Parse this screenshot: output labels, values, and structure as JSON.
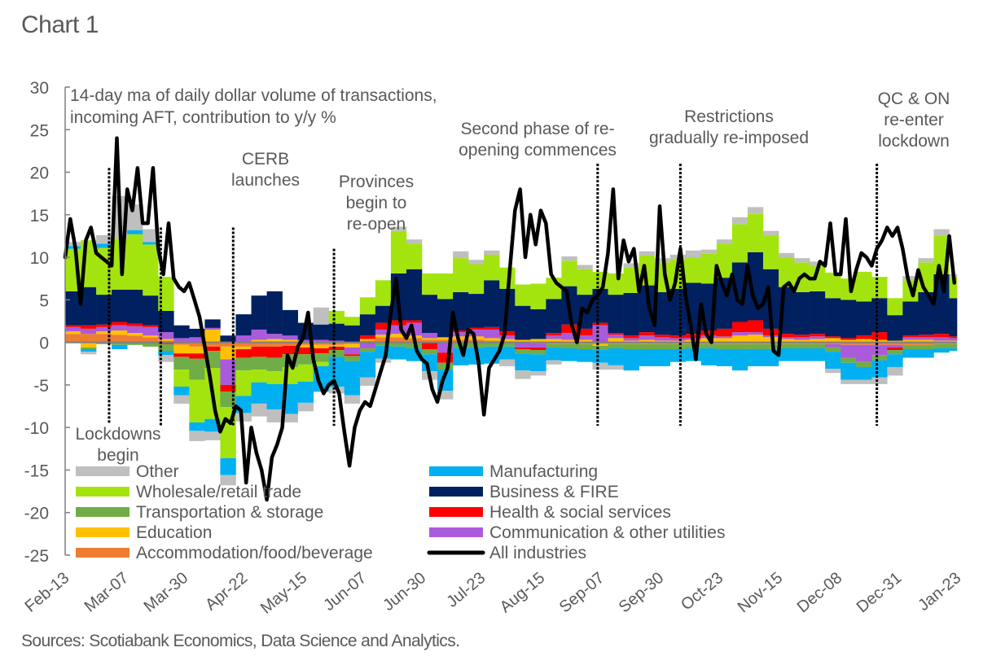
{
  "chart_title": "Chart 1",
  "source": "Sources: Scotiabank Economics, Data Science and Analytics.",
  "chart_data": {
    "type": "bar",
    "subtype": "stacked-bar-with-line",
    "title": "14-day ma of daily dollar volume of transactions, incoming AFT, contribution to y/y %",
    "title_lines": [
      "14-day ma of daily dollar volume of transactions,",
      "incoming AFT, contribution to y/y %"
    ],
    "xlabel": "",
    "ylabel": "",
    "ylim": [
      -25,
      30
    ],
    "yticks": [
      30,
      25,
      20,
      15,
      10,
      5,
      0,
      -5,
      -10,
      -15,
      -20,
      -25
    ],
    "x_tick_labels": [
      "Feb-13",
      "Mar-07",
      "Mar-30",
      "Apr-22",
      "May-15",
      "Jun-07",
      "Jun-30",
      "Jul-23",
      "Aug-15",
      "Sep-07",
      "Sep-30",
      "Oct-23",
      "Nov-15",
      "Dec-08",
      "Dec-31",
      "Jan-23"
    ],
    "x_range_days": [
      0,
      345
    ],
    "x_tick_interval_days": 23,
    "grid": false,
    "legend_position": "bottom-inside",
    "legend": [
      {
        "name": "Other",
        "color": "#bfbfbf",
        "kind": "bar"
      },
      {
        "name": "Wholesale/retail trade",
        "color": "#a3e40f",
        "kind": "bar"
      },
      {
        "name": "Transportation & storage",
        "color": "#70ad47",
        "kind": "bar"
      },
      {
        "name": "Education",
        "color": "#ffc000",
        "kind": "bar"
      },
      {
        "name": "Accommodation/food/beverage",
        "color": "#ed7d31",
        "kind": "bar"
      },
      {
        "name": "Manufacturing",
        "color": "#00b0f0",
        "kind": "bar"
      },
      {
        "name": "Business & FIRE",
        "color": "#002060",
        "kind": "bar"
      },
      {
        "name": "Health & social services",
        "color": "#ff0000",
        "kind": "bar"
      },
      {
        "name": "Communication & other utilities",
        "color": "#a95bdb",
        "kind": "bar"
      },
      {
        "name": "All industries",
        "color": "#000000",
        "kind": "line"
      }
    ],
    "annotations": [
      {
        "text": [
          "Lockdowns",
          "begin"
        ],
        "day": 17,
        "line_top": 20.5,
        "line_bottom": -9.5
      },
      {
        "text": [],
        "day": 37,
        "line_top": 13.5,
        "line_bottom": -9.8
      },
      {
        "text": [
          "CERB",
          "launches"
        ],
        "day": 65,
        "line_top": 13.5,
        "line_bottom": -9.8
      },
      {
        "text": [
          "Provinces",
          "begin to",
          "re-open"
        ],
        "day": 104,
        "line_top": 11.0,
        "line_bottom": -9.8
      },
      {
        "text": [
          "Second phase of re-",
          "opening commences"
        ],
        "day": 206,
        "line_top": 21.0,
        "line_bottom": -9.8
      },
      {
        "text": [
          "Restrictions",
          "gradually re-imposed"
        ],
        "day": 238,
        "line_top": 21.0,
        "line_bottom": -9.8
      },
      {
        "text": [
          "QC & ON",
          "re-enter",
          "lockdown"
        ],
        "day": 314,
        "line_top": 21.0,
        "line_bottom": -9.8
      }
    ],
    "x_days_components": [
      0,
      6,
      12,
      18,
      24,
      30,
      36,
      42,
      48,
      54,
      60,
      66,
      72,
      78,
      84,
      90,
      96,
      102,
      108,
      114,
      120,
      126,
      132,
      138,
      144,
      150,
      156,
      162,
      168,
      174,
      180,
      186,
      192,
      198,
      204,
      210,
      216,
      222,
      228,
      234,
      240,
      246,
      252,
      258,
      264,
      270,
      276,
      282,
      288,
      294,
      300,
      306,
      312,
      318,
      324,
      330,
      336,
      342
    ],
    "series": [
      {
        "name": "Accommodation/food/beverage",
        "values": [
          1.0,
          1.0,
          1.0,
          0.9,
          0.8,
          0.6,
          0.2,
          -0.3,
          -0.5,
          -0.5,
          -0.5,
          -0.5,
          -0.5,
          -0.5,
          -0.4,
          -0.3,
          -0.3,
          -0.3,
          -0.2,
          0.2,
          0.6,
          0.6,
          0.5,
          0.3,
          0.3,
          0.3,
          0.3,
          0.2,
          0.1,
          0.0,
          -0.1,
          -0.2,
          -0.2,
          -0.2,
          -0.2,
          -0.2,
          -0.2,
          -0.2,
          -0.2,
          -0.2,
          -0.2,
          -0.2,
          -0.2,
          -0.2,
          -0.2,
          -0.2,
          -0.2,
          -0.2,
          -0.2,
          -0.2,
          -0.3,
          -0.3,
          -0.3,
          -0.3,
          -0.3,
          -0.3,
          -0.2,
          -0.2
        ]
      },
      {
        "name": "Education",
        "values": [
          0.3,
          -0.6,
          0.3,
          0.5,
          0.3,
          0.2,
          0.2,
          -1.0,
          -0.8,
          1.5,
          -1.5,
          -0.3,
          0.3,
          0.4,
          0.3,
          -0.3,
          -0.4,
          -0.2,
          -0.4,
          0.2,
          0.3,
          0.4,
          0.3,
          0.2,
          0.3,
          0.4,
          0.4,
          0.3,
          0.3,
          0.3,
          0.4,
          0.4,
          0.3,
          0.3,
          -0.2,
          0.5,
          0.2,
          0.3,
          0.2,
          0.2,
          0.3,
          0.5,
          0.5,
          0.8,
          0.9,
          0.6,
          0.4,
          0.3,
          0.4,
          0.5,
          0.3,
          0.4,
          0.3,
          0.2,
          0.3,
          0.3,
          0.2,
          0.2
        ]
      },
      {
        "name": "Communication & other utilities",
        "values": [
          0.5,
          0.6,
          0.5,
          0.6,
          0.8,
          1.0,
          0.8,
          0.5,
          0.6,
          0.2,
          -3.0,
          0.8,
          1.2,
          0.6,
          0.5,
          0.3,
          0.3,
          0.2,
          -0.8,
          -0.7,
          0.6,
          1.0,
          1.5,
          0.6,
          -1.2,
          0.5,
          0.8,
          1.0,
          0.4,
          -0.6,
          -0.5,
          0.4,
          0.8,
          0.5,
          2.0,
          0.4,
          0.3,
          0.5,
          0.4,
          0.3,
          0.2,
          0.3,
          0.2,
          0.4,
          0.3,
          0.2,
          0.2,
          0.3,
          0.3,
          -0.4,
          -1.5,
          -2.0,
          -1.2,
          -0.3,
          0.3,
          0.3,
          0.4,
          0.3
        ]
      },
      {
        "name": "Health & social services",
        "values": [
          0.2,
          0.4,
          0.3,
          0.4,
          0.3,
          0.2,
          -0.2,
          -0.4,
          -0.6,
          -0.5,
          -0.8,
          -1.0,
          -1.2,
          -1.3,
          -1.0,
          -0.8,
          -0.6,
          -0.4,
          -0.2,
          0.4,
          0.8,
          0.6,
          0.3,
          -0.8,
          -1.2,
          0.2,
          0.2,
          0.3,
          0.5,
          -0.2,
          -0.3,
          0.3,
          1.0,
          0.8,
          0.3,
          0.2,
          0.3,
          0.4,
          0.3,
          0.3,
          0.5,
          0.6,
          0.9,
          1.2,
          1.4,
          0.8,
          0.4,
          0.3,
          0.3,
          0.2,
          0.2,
          0.4,
          0.9,
          -0.3,
          0.2,
          0.3,
          0.4,
          0.2
        ]
      },
      {
        "name": "Transportation & storage",
        "values": [
          -0.1,
          -0.2,
          -0.2,
          -0.3,
          -0.3,
          -0.5,
          -0.8,
          -1.5,
          -2.5,
          -2.0,
          -1.8,
          -1.5,
          -1.5,
          -1.6,
          -1.5,
          -1.2,
          -1.0,
          -0.8,
          -0.6,
          -0.4,
          -0.4,
          -0.5,
          -0.7,
          -0.6,
          -0.8,
          -0.7,
          -0.6,
          -0.5,
          -0.5,
          -0.5,
          -0.5,
          -0.4,
          -0.5,
          -0.6,
          -0.5,
          -0.5,
          -0.6,
          -0.6,
          -0.6,
          -0.6,
          -0.5,
          -0.5,
          -0.6,
          -0.6,
          -0.6,
          -0.6,
          -0.5,
          -0.5,
          -0.5,
          -0.5,
          -0.6,
          -0.6,
          -0.6,
          -0.5,
          -0.5,
          -0.5,
          -0.5,
          -0.5
        ]
      },
      {
        "name": "Business & FIRE",
        "values": [
          4.0,
          4.5,
          3.5,
          3.8,
          4.0,
          3.5,
          2.5,
          1.5,
          1.0,
          1.0,
          0.8,
          2.5,
          4.0,
          5.0,
          3.0,
          2.0,
          1.8,
          2.0,
          2.0,
          2.5,
          2.0,
          5.5,
          6.0,
          4.5,
          4.5,
          4.5,
          4.0,
          5.5,
          5.0,
          4.0,
          3.5,
          4.0,
          4.5,
          4.0,
          4.0,
          4.5,
          5.0,
          5.5,
          5.0,
          5.5,
          6.0,
          5.5,
          6.0,
          7.0,
          8.0,
          7.0,
          5.5,
          5.0,
          5.0,
          4.5,
          4.5,
          4.0,
          4.0,
          3.0,
          4.0,
          5.0,
          7.0,
          4.5
        ]
      },
      {
        "name": "Wholesale/retail trade",
        "values": [
          5.0,
          5.5,
          5.5,
          6.0,
          6.5,
          6.0,
          4.0,
          -2.0,
          -5.0,
          -6.0,
          -6.0,
          -3.0,
          -1.5,
          -1.5,
          -2.0,
          -2.0,
          -0.5,
          1.5,
          1.0,
          2.0,
          3.0,
          5.0,
          3.0,
          2.5,
          3.0,
          4.0,
          3.5,
          3.0,
          2.5,
          2.5,
          3.0,
          2.5,
          3.0,
          3.0,
          2.0,
          2.5,
          3.0,
          3.5,
          3.5,
          3.5,
          3.0,
          3.5,
          4.0,
          4.5,
          4.5,
          4.0,
          3.5,
          3.5,
          3.0,
          3.0,
          2.5,
          3.5,
          2.5,
          2.0,
          2.5,
          3.5,
          4.5,
          2.5
        ]
      },
      {
        "name": "Manufacturing",
        "values": [
          0.3,
          -0.3,
          0.5,
          -0.5,
          0.5,
          0.3,
          -0.5,
          -1.0,
          -1.0,
          -1.5,
          -2.0,
          -2.0,
          -2.5,
          -3.0,
          -3.5,
          -2.5,
          -3.0,
          -3.5,
          -4.0,
          -3.0,
          -1.5,
          -1.5,
          -1.5,
          -2.0,
          -2.5,
          -2.0,
          -2.0,
          -2.0,
          -1.5,
          -2.0,
          -2.0,
          -1.5,
          -1.5,
          -1.5,
          -1.5,
          -2.0,
          -2.5,
          -2.0,
          -2.0,
          -1.5,
          -1.5,
          -2.0,
          -2.0,
          -2.5,
          -2.0,
          -2.0,
          -1.5,
          -1.5,
          -1.5,
          -2.0,
          -2.0,
          -1.5,
          -2.0,
          -1.5,
          -1.0,
          -1.0,
          -0.5,
          -0.3
        ]
      },
      {
        "name": "Other",
        "values": [
          0.5,
          -0.3,
          1.0,
          5.0,
          3.0,
          1.5,
          -0.8,
          -1.0,
          -1.2,
          -1.0,
          -1.2,
          -1.0,
          -1.5,
          -1.5,
          -1.0,
          -1.0,
          2.0,
          -0.8,
          -1.0,
          -1.0,
          -0.5,
          0.5,
          0.5,
          -1.0,
          -1.0,
          0.8,
          0.5,
          0.5,
          -0.8,
          -1.0,
          -0.5,
          -0.5,
          0.5,
          0.5,
          -0.8,
          -0.5,
          0.5,
          0.5,
          0.5,
          0.5,
          0.8,
          0.5,
          0.5,
          0.8,
          0.8,
          0.5,
          0.5,
          0.5,
          0.5,
          -0.5,
          -0.5,
          -0.5,
          -0.8,
          -1.0,
          0.5,
          0.5,
          0.8,
          0.3
        ]
      }
    ],
    "all_industries": {
      "x_days": [
        0,
        2,
        4,
        6,
        8,
        10,
        12,
        14,
        16,
        18,
        20,
        22,
        24,
        26,
        28,
        30,
        32,
        34,
        36,
        38,
        40,
        42,
        44,
        46,
        48,
        50,
        52,
        54,
        56,
        58,
        60,
        62,
        64,
        66,
        68,
        70,
        72,
        74,
        76,
        78,
        80,
        82,
        84,
        86,
        88,
        90,
        92,
        94,
        96,
        98,
        100,
        102,
        104,
        106,
        108,
        110,
        112,
        114,
        116,
        118,
        120,
        122,
        124,
        126,
        128,
        130,
        132,
        134,
        136,
        138,
        140,
        142,
        144,
        146,
        148,
        150,
        152,
        154,
        156,
        158,
        160,
        162,
        164,
        166,
        168,
        170,
        172,
        174,
        176,
        178,
        180,
        182,
        184,
        186,
        188,
        190,
        192,
        194,
        196,
        198,
        200,
        202,
        204,
        206,
        208,
        210,
        212,
        214,
        216,
        218,
        220,
        222,
        224,
        226,
        228,
        230,
        232,
        234,
        236,
        238,
        240,
        242,
        244,
        246,
        248,
        250,
        252,
        254,
        256,
        258,
        260,
        262,
        264,
        266,
        268,
        270,
        272,
        274,
        276,
        278,
        280,
        282,
        284,
        286,
        288,
        290,
        292,
        294,
        296,
        298,
        300,
        302,
        304,
        306,
        308,
        310,
        312,
        314,
        316,
        318,
        320,
        322,
        324,
        326,
        328,
        330,
        332,
        334,
        336,
        338,
        340,
        342,
        344
      ],
      "values": [
        10.0,
        14.5,
        11.0,
        4.5,
        12.0,
        13.5,
        10.5,
        10.0,
        9.5,
        9.0,
        24.0,
        8.0,
        18.0,
        15.5,
        20.5,
        14.0,
        14.0,
        20.5,
        11.0,
        8.0,
        14.0,
        7.5,
        6.5,
        6.0,
        7.0,
        5.0,
        3.0,
        -0.5,
        -4.0,
        -8.0,
        -10.5,
        -9.0,
        -9.5,
        -7.5,
        -8.0,
        -16.5,
        -10.0,
        -13.0,
        -15.0,
        -18.5,
        -13.5,
        -12.0,
        -10.0,
        -1.5,
        -3.0,
        -0.5,
        0.5,
        3.5,
        -2.0,
        -4.5,
        -6.0,
        -5.0,
        -4.5,
        -6.0,
        -10.5,
        -14.5,
        -10.0,
        -8.0,
        -7.0,
        -7.5,
        -5.5,
        -3.5,
        -1.5,
        3.5,
        7.5,
        1.5,
        0.5,
        2.0,
        -1.0,
        -2.0,
        -2.5,
        -5.5,
        -7.0,
        -4.5,
        -3.0,
        3.5,
        0.5,
        -1.5,
        1.5,
        1.0,
        -2.5,
        -8.5,
        -3.0,
        -2.0,
        -1.0,
        1.0,
        8.5,
        15.5,
        18.0,
        10.0,
        15.0,
        11.5,
        15.5,
        14.0,
        8.0,
        7.0,
        6.5,
        6.0,
        2.0,
        0.0,
        4.0,
        3.5,
        5.0,
        5.5,
        6.5,
        10.5,
        18.0,
        7.5,
        12.0,
        9.5,
        11.0,
        6.0,
        9.0,
        4.0,
        2.0,
        16.0,
        8.0,
        5.0,
        7.0,
        11.0,
        5.5,
        2.0,
        -2.0,
        4.5,
        1.0,
        0.0,
        9.0,
        7.0,
        5.5,
        8.0,
        5.0,
        4.5,
        9.0,
        5.5,
        4.0,
        4.5,
        6.5,
        -1.0,
        -1.5,
        6.5,
        7.0,
        6.0,
        7.5,
        8.0,
        7.5,
        7.5,
        9.5,
        9.0,
        14.0,
        8.0,
        8.0,
        14.5,
        6.0,
        8.5,
        10.5,
        10.0,
        9.0,
        11.0,
        12.0,
        13.5,
        12.5,
        13.5,
        11.0,
        7.5,
        5.5,
        8.5,
        6.5,
        5.5,
        4.5,
        9.0,
        6.0,
        12.5,
        7.0,
        4.5,
        12.5,
        6.5,
        -4.5,
        3.0,
        6.5,
        4.5,
        11.0,
        17.5,
        11.5,
        5.0
      ]
    }
  }
}
